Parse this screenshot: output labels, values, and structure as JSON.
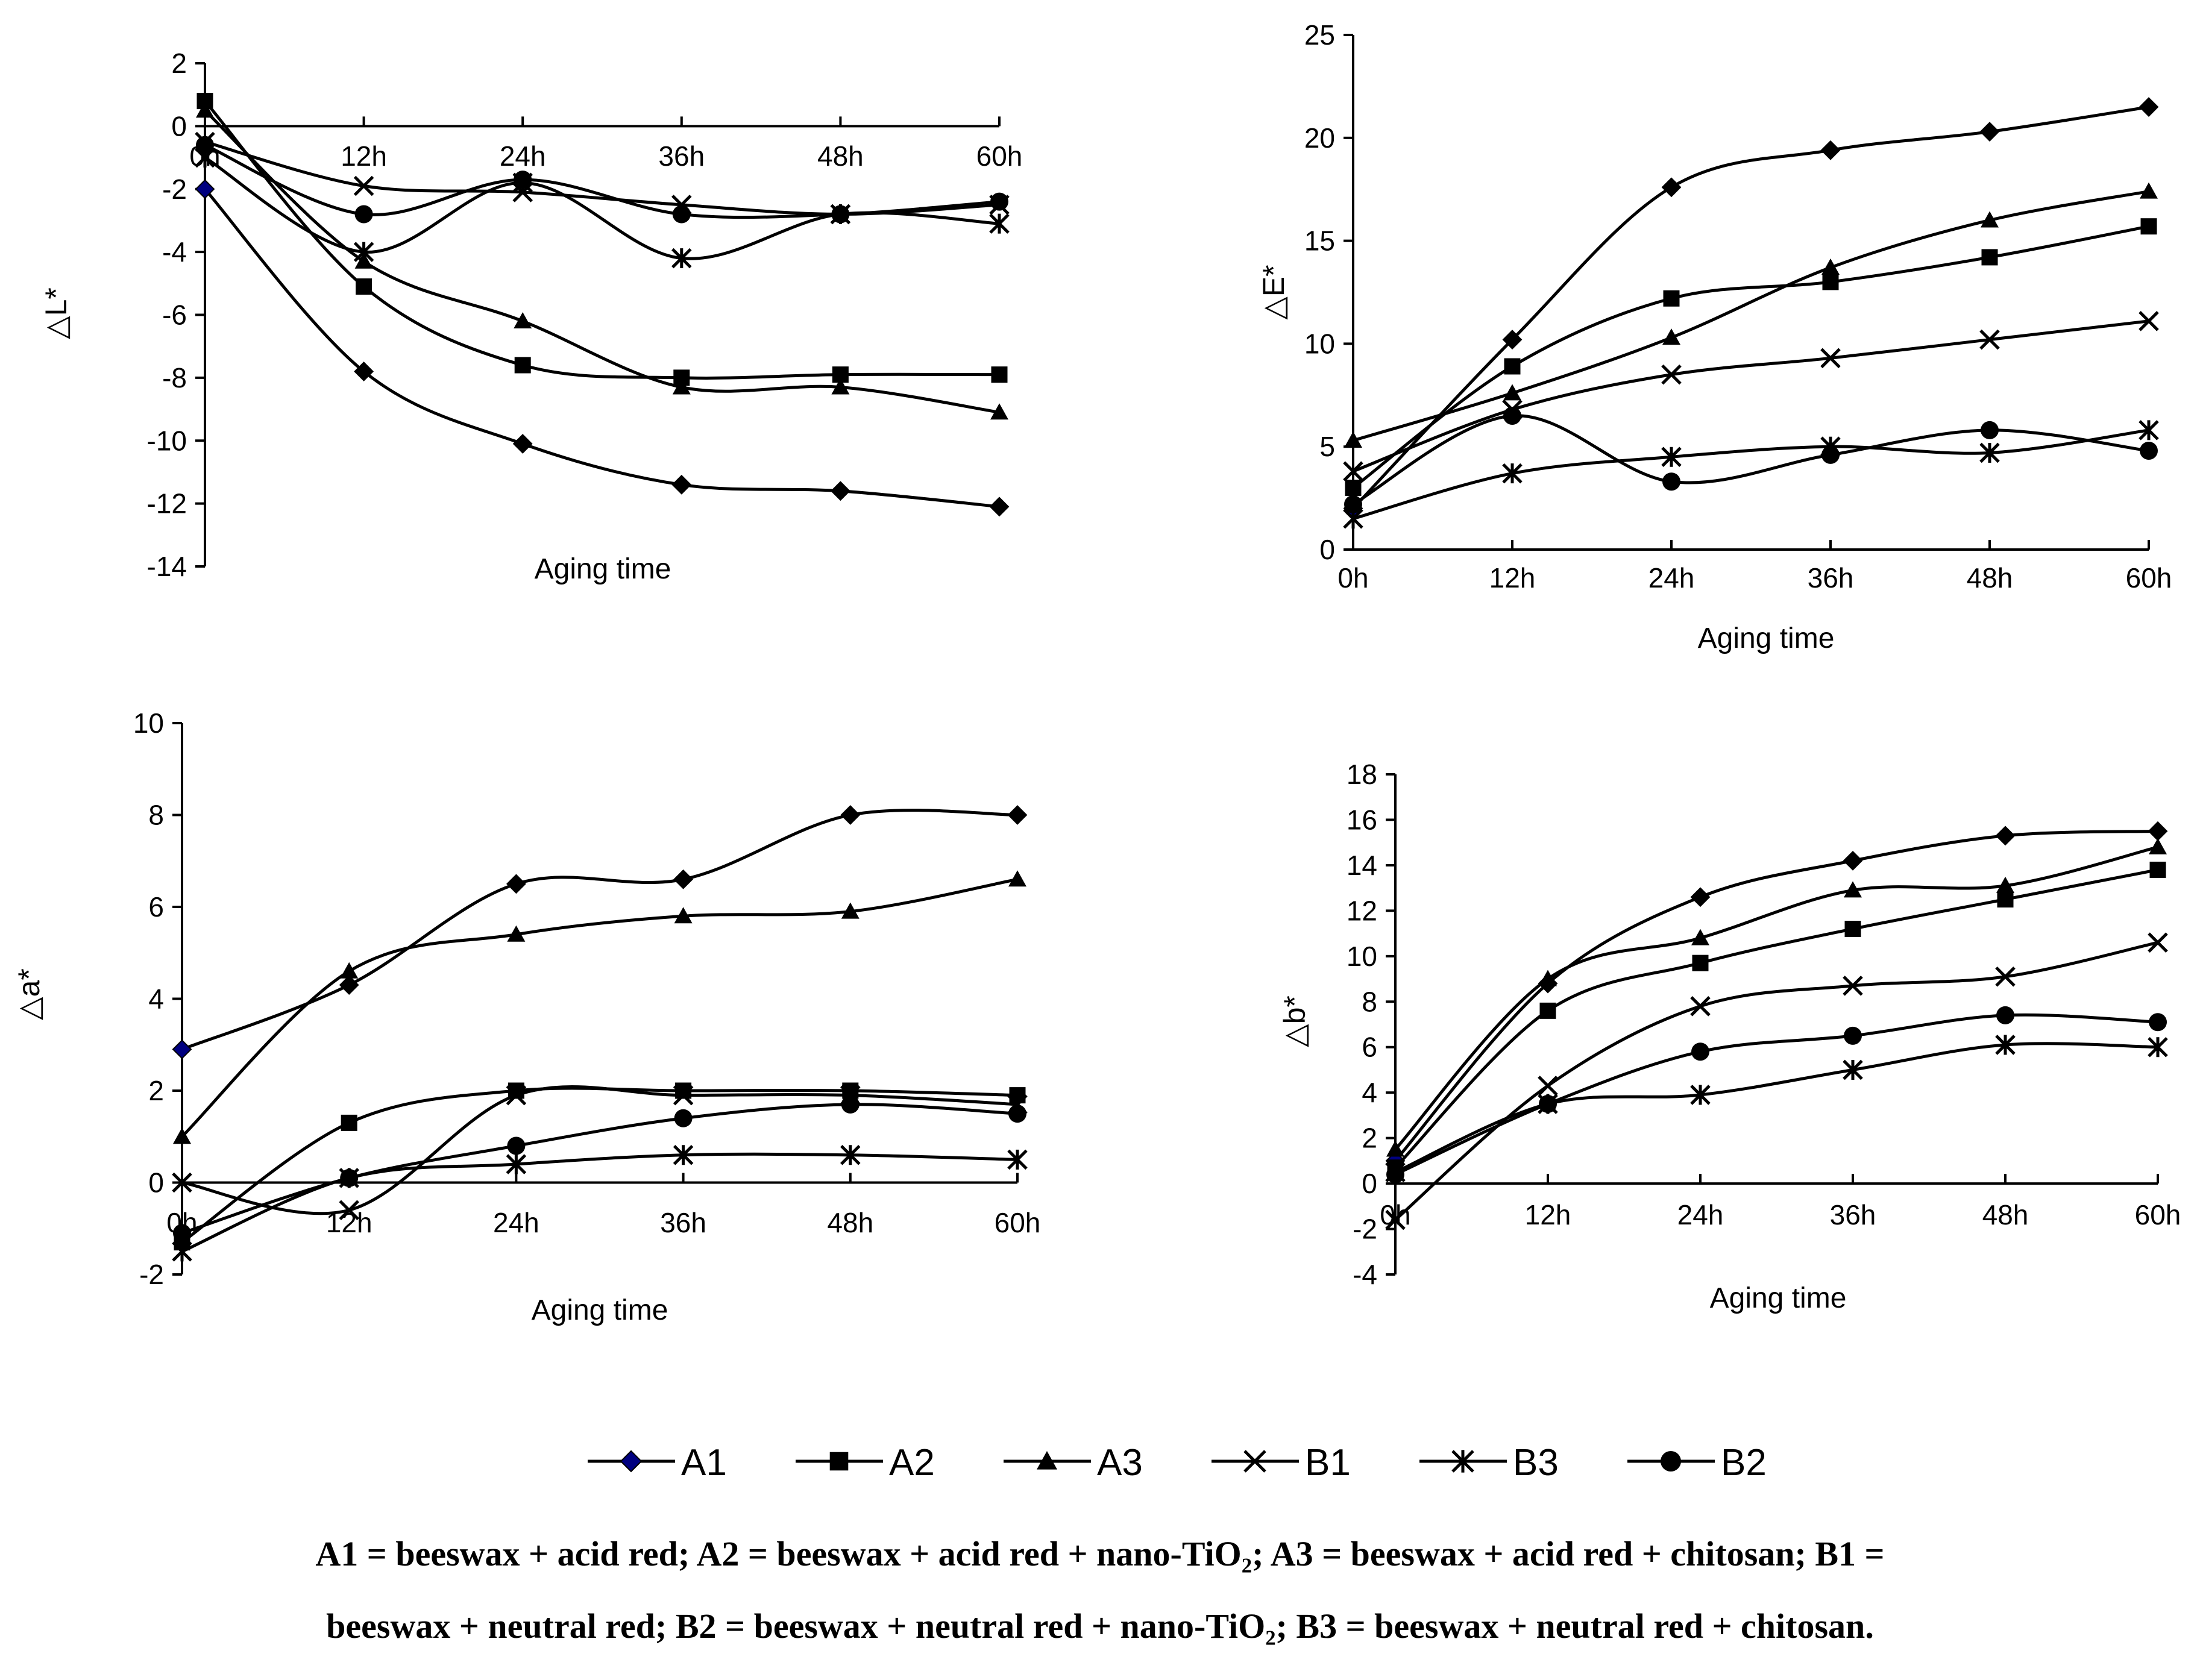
{
  "colors": {
    "line": "#000000",
    "A1_marker": "#000080",
    "marker": "#000000"
  },
  "legend": [
    {
      "key": "A1",
      "marker": "diamond"
    },
    {
      "key": "A2",
      "marker": "square"
    },
    {
      "key": "A3",
      "marker": "triangle"
    },
    {
      "key": "B1",
      "marker": "x"
    },
    {
      "key": "B3",
      "marker": "star"
    },
    {
      "key": "B2",
      "marker": "circle"
    }
  ],
  "caption": {
    "line1": "A1 = beeswax + acid red; A2 = beeswax + acid red + nano-TiO₂; A3 = beeswax + acid red + chitosan; B1 =",
    "line2": "beeswax + neutral red; B2 = beeswax + neutral red + nano-TiO₂; B3 = beeswax + neutral red + chitosan."
  },
  "chart_data": [
    {
      "id": "dL",
      "type": "line",
      "title": "",
      "ylabel": "△L*",
      "xlabel": "Aging time",
      "categories": [
        "0h",
        "12h",
        "24h",
        "36h",
        "48h",
        "60h"
      ],
      "ylim": [
        -14,
        2
      ],
      "yticks": [
        2,
        0,
        -2,
        -4,
        -6,
        -8,
        -10,
        -12,
        -14
      ],
      "series": [
        {
          "name": "A1",
          "values": [
            -2.0,
            -7.8,
            -10.1,
            -11.4,
            -11.6,
            -12.1
          ]
        },
        {
          "name": "A2",
          "values": [
            0.8,
            -5.1,
            -7.6,
            -8.0,
            -7.9,
            -7.9
          ]
        },
        {
          "name": "A3",
          "values": [
            0.5,
            -4.3,
            -6.2,
            -8.3,
            -8.3,
            -9.1
          ]
        },
        {
          "name": "B1",
          "values": [
            -0.5,
            -1.9,
            -2.1,
            -2.5,
            -2.8,
            -2.5
          ]
        },
        {
          "name": "B3",
          "values": [
            -1.0,
            -4.0,
            -1.8,
            -4.2,
            -2.8,
            -3.1
          ]
        },
        {
          "name": "B2",
          "values": [
            -0.6,
            -2.8,
            -1.7,
            -2.8,
            -2.8,
            -2.4
          ]
        }
      ]
    },
    {
      "id": "dE",
      "type": "line",
      "title": "",
      "ylabel": "△E*",
      "xlabel": "Aging time",
      "categories": [
        "0h",
        "12h",
        "24h",
        "36h",
        "48h",
        "60h"
      ],
      "ylim": [
        0,
        25
      ],
      "yticks": [
        0,
        5,
        10,
        15,
        20,
        25
      ],
      "series": [
        {
          "name": "A1",
          "values": [
            2.0,
            10.2,
            17.6,
            19.4,
            20.3,
            21.5
          ]
        },
        {
          "name": "A2",
          "values": [
            3.0,
            8.9,
            12.2,
            13.0,
            14.2,
            15.7
          ]
        },
        {
          "name": "A3",
          "values": [
            5.3,
            7.6,
            10.3,
            13.7,
            16.0,
            17.4
          ]
        },
        {
          "name": "B1",
          "values": [
            3.8,
            6.8,
            8.5,
            9.3,
            10.2,
            11.1
          ]
        },
        {
          "name": "B3",
          "values": [
            1.5,
            3.7,
            4.5,
            5.0,
            4.7,
            5.8
          ]
        },
        {
          "name": "B2",
          "values": [
            2.2,
            6.5,
            3.3,
            4.6,
            5.8,
            4.8
          ]
        }
      ]
    },
    {
      "id": "da",
      "type": "line",
      "title": "",
      "ylabel": "△a*",
      "xlabel": "Aging time",
      "categories": [
        "0h",
        "12h",
        "24h",
        "36h",
        "48h",
        "60h"
      ],
      "ylim": [
        -2,
        10
      ],
      "yticks": [
        10,
        8,
        6,
        4,
        2,
        0,
        -2
      ],
      "series": [
        {
          "name": "A1",
          "values": [
            2.9,
            4.3,
            6.5,
            6.6,
            8.0,
            8.0
          ]
        },
        {
          "name": "A2",
          "values": [
            -1.3,
            1.3,
            2.0,
            2.0,
            2.0,
            1.9
          ]
        },
        {
          "name": "A3",
          "values": [
            1.0,
            4.6,
            5.4,
            5.8,
            5.9,
            6.6
          ]
        },
        {
          "name": "B1",
          "values": [
            0.0,
            -0.6,
            1.9,
            1.9,
            1.9,
            1.7
          ]
        },
        {
          "name": "B3",
          "values": [
            -1.5,
            0.1,
            0.4,
            0.6,
            0.6,
            0.5
          ]
        },
        {
          "name": "B2",
          "values": [
            -1.1,
            0.1,
            0.8,
            1.4,
            1.7,
            1.5
          ]
        }
      ]
    },
    {
      "id": "db",
      "type": "line",
      "title": "",
      "ylabel": "△b*",
      "xlabel": "Aging time",
      "categories": [
        "0h",
        "12h",
        "24h",
        "36h",
        "48h",
        "60h"
      ],
      "ylim": [
        -4,
        18
      ],
      "yticks": [
        18,
        16,
        14,
        12,
        10,
        8,
        6,
        4,
        2,
        0,
        -2,
        -4
      ],
      "series": [
        {
          "name": "A1",
          "values": [
            1.0,
            8.8,
            12.6,
            14.2,
            15.3,
            15.5
          ]
        },
        {
          "name": "A2",
          "values": [
            0.7,
            7.6,
            9.7,
            11.2,
            12.5,
            13.8
          ]
        },
        {
          "name": "A3",
          "values": [
            1.5,
            9.0,
            10.8,
            12.9,
            13.1,
            14.8
          ]
        },
        {
          "name": "B1",
          "values": [
            -1.6,
            4.3,
            7.8,
            8.7,
            9.1,
            10.6
          ]
        },
        {
          "name": "B3",
          "values": [
            0.5,
            3.5,
            3.9,
            5.0,
            6.1,
            6.0
          ]
        },
        {
          "name": "B2",
          "values": [
            0.4,
            3.5,
            5.8,
            6.5,
            7.4,
            7.1
          ]
        }
      ]
    }
  ]
}
